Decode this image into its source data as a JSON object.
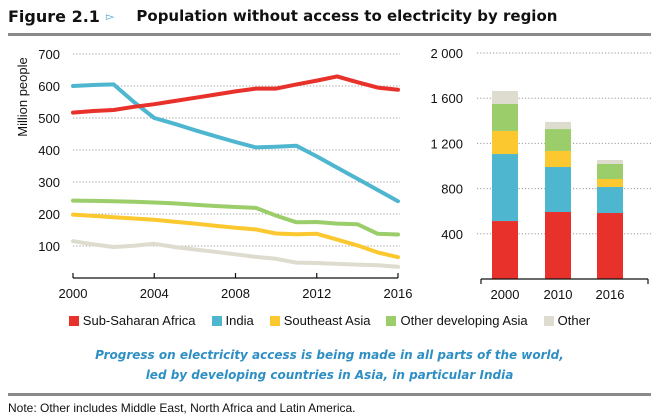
{
  "header": {
    "figure_number": "Figure 2.1",
    "arrow_glyph": "▻",
    "title": "Population without access to electricity by region"
  },
  "colors": {
    "Sub-Saharan Africa": "#e8312a",
    "India": "#4fb6d0",
    "Southeast Asia": "#fcc830",
    "Other developing Asia": "#9bcd6a",
    "Other": "#dedccf"
  },
  "legend": [
    {
      "label": "Sub-Saharan Africa",
      "color": "#e8312a"
    },
    {
      "label": "India",
      "color": "#4fb6d0"
    },
    {
      "label": "Southeast Asia",
      "color": "#fcc830"
    },
    {
      "label": "Other developing Asia",
      "color": "#9bcd6a"
    },
    {
      "label": "Other",
      "color": "#dedccf"
    }
  ],
  "tagline": {
    "line1": "Progress on electricity access is being made in all parts of the world,",
    "line2": "led by developing countries in Asia, in particular India"
  },
  "note": "Note: Other includes Middle East, North Africa and Latin America.",
  "chart_data": [
    {
      "type": "line",
      "title": "Population without access to electricity by region",
      "ylabel": "Million people",
      "xlabel": "",
      "x": [
        2000,
        2001,
        2002,
        2003,
        2004,
        2005,
        2006,
        2007,
        2008,
        2009,
        2010,
        2011,
        2012,
        2013,
        2014,
        2015,
        2016
      ],
      "xticks": [
        "2000",
        "2004",
        "2008",
        "2012",
        "2016"
      ],
      "xtick_values": [
        2000,
        2004,
        2008,
        2012,
        2016
      ],
      "yticks": [
        "100",
        "200",
        "300",
        "400",
        "500",
        "600",
        "700"
      ],
      "ytick_values": [
        100,
        200,
        300,
        400,
        500,
        600,
        700
      ],
      "ylim": [
        0,
        700
      ],
      "xlim": [
        2000,
        2016
      ],
      "grid": "horizontal-dotted",
      "series": [
        {
          "name": "Sub-Saharan Africa",
          "values": [
            517,
            522,
            525,
            535,
            543,
            553,
            563,
            573,
            583,
            592,
            592,
            605,
            617,
            630,
            612,
            595,
            588
          ]
        },
        {
          "name": "India",
          "values": [
            600,
            603,
            605,
            550,
            500,
            482,
            462,
            443,
            425,
            408,
            410,
            413,
            380,
            345,
            310,
            275,
            240
          ]
        },
        {
          "name": "Southeast Asia",
          "values": [
            198,
            194,
            190,
            186,
            182,
            176,
            170,
            163,
            157,
            152,
            139,
            137,
            138,
            120,
            102,
            80,
            65
          ]
        },
        {
          "name": "Other developing Asia",
          "values": [
            242,
            241,
            240,
            238,
            236,
            233,
            229,
            225,
            222,
            219,
            195,
            174,
            175,
            170,
            168,
            138,
            136
          ]
        },
        {
          "name": "Other",
          "values": [
            115,
            105,
            97,
            101,
            107,
            97,
            89,
            82,
            74,
            66,
            60,
            48,
            47,
            44,
            42,
            40,
            35
          ]
        }
      ]
    },
    {
      "type": "bar",
      "stacked": true,
      "categories": [
        "2000",
        "2010",
        "2016"
      ],
      "yticks": [
        "400",
        "800",
        "1 200",
        "1 600",
        "2 000"
      ],
      "ytick_values": [
        400,
        800,
        1200,
        1600,
        2000
      ],
      "ylim": [
        0,
        2000
      ],
      "grid": "horizontal-dotted",
      "series": [
        {
          "name": "Sub-Saharan Africa",
          "values": [
            513,
            593,
            584
          ]
        },
        {
          "name": "India",
          "values": [
            593,
            398,
            230
          ]
        },
        {
          "name": "Southeast Asia",
          "values": [
            204,
            142,
            71
          ]
        },
        {
          "name": "Other developing Asia",
          "values": [
            239,
            194,
            133
          ]
        },
        {
          "name": "Other",
          "values": [
            115,
            63,
            35
          ]
        }
      ]
    }
  ]
}
